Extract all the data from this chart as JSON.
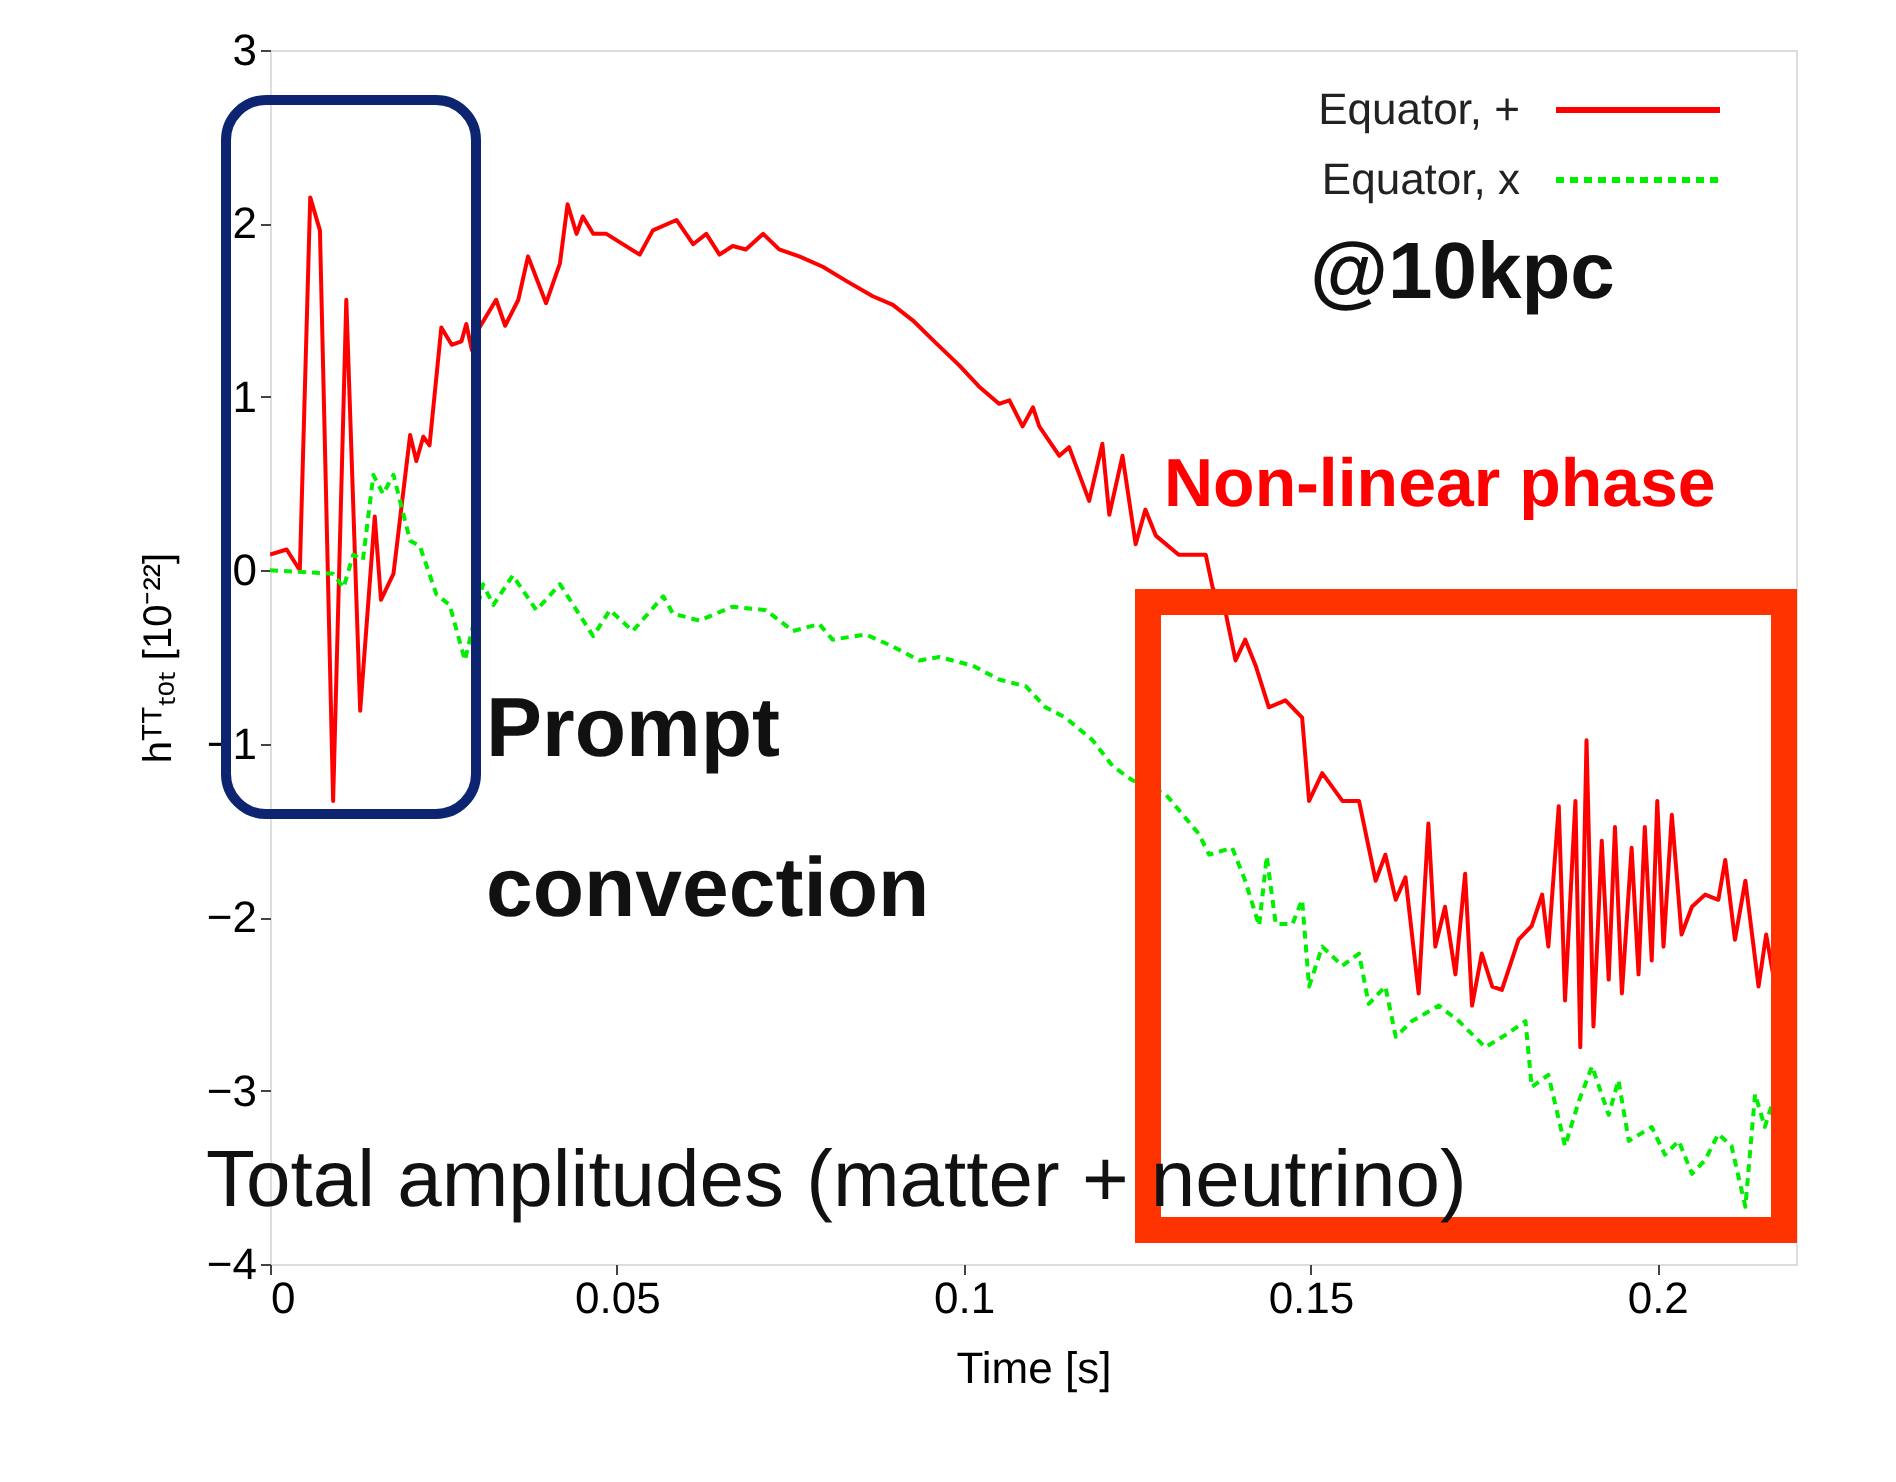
{
  "chart_data": {
    "type": "line",
    "xlabel": "Time [s]",
    "ylabel": "hᵀᵀₜₒₜ [10⁻²²]",
    "xlim": [
      0,
      0.22
    ],
    "ylim": [
      -4,
      3
    ],
    "xticks": [
      0,
      0.05,
      0.1,
      0.15,
      0.2
    ],
    "yticks": [
      -4,
      -3,
      -2,
      -1,
      0,
      1,
      2,
      3
    ],
    "grid": false,
    "legend": "top right",
    "marker": "none",
    "annotations": [
      "@10kpc",
      "Non-linear phase",
      "Prompt convection",
      "Total amplitudes (matter + neutrino)"
    ],
    "series": [
      {
        "name": "Equator, +",
        "color": "#ff0000",
        "line_style": "solid",
        "x": [
          0,
          0.0024,
          0.0043,
          0.0058,
          0.0072,
          0.0091,
          0.011,
          0.013,
          0.0151,
          0.016,
          0.0178,
          0.0202,
          0.0211,
          0.0221,
          0.023,
          0.0247,
          0.0262,
          0.0276,
          0.0283,
          0.0291,
          0.0302,
          0.0326,
          0.0339,
          0.0358,
          0.0372,
          0.0398,
          0.0418,
          0.0429,
          0.0442,
          0.0451,
          0.0466,
          0.0485,
          0.0533,
          0.0552,
          0.0586,
          0.061,
          0.0629,
          0.0648,
          0.0667,
          0.0686,
          0.0711,
          0.0734,
          0.0763,
          0.0797,
          0.083,
          0.0869,
          0.0898,
          0.0927,
          0.0955,
          0.0994,
          0.1022,
          0.1051,
          0.1066,
          0.1085,
          0.11,
          0.1109,
          0.1138,
          0.1152,
          0.1181,
          0.12,
          0.121,
          0.1229,
          0.1248,
          0.1262,
          0.1277,
          0.131,
          0.1349,
          0.1359,
          0.1378,
          0.1392,
          0.1406,
          0.1421,
          0.144,
          0.1464,
          0.1488,
          0.1498,
          0.1517,
          0.1546,
          0.157,
          0.1594,
          0.1608,
          0.1623,
          0.1637,
          0.1656,
          0.167,
          0.168,
          0.1694,
          0.1709,
          0.1723,
          0.1733,
          0.1747,
          0.1762,
          0.1776,
          0.18,
          0.1819,
          0.1834,
          0.1843,
          0.1858,
          0.1867,
          0.1882,
          0.1889,
          0.1898,
          0.1908,
          0.192,
          0.193,
          0.1939,
          0.1949,
          0.1963,
          0.1973,
          0.1982,
          0.1992,
          0.2,
          0.2009,
          0.2021,
          0.2035,
          0.205,
          0.2069,
          0.2088,
          0.2098,
          0.2112,
          0.2127,
          0.2146,
          0.2157,
          0.2167
        ],
        "values": [
          0.09,
          0.12,
          0.0,
          2.15,
          1.96,
          -1.33,
          1.56,
          -0.81,
          0.31,
          -0.17,
          -0.02,
          0.78,
          0.63,
          0.77,
          0.72,
          1.4,
          1.3,
          1.32,
          1.42,
          1.27,
          1.4,
          1.56,
          1.41,
          1.56,
          1.81,
          1.54,
          1.77,
          2.11,
          1.94,
          2.04,
          1.94,
          1.94,
          1.82,
          1.96,
          2.02,
          1.88,
          1.94,
          1.82,
          1.87,
          1.85,
          1.94,
          1.85,
          1.81,
          1.75,
          1.67,
          1.58,
          1.53,
          1.44,
          1.33,
          1.18,
          1.06,
          0.96,
          0.98,
          0.83,
          0.94,
          0.83,
          0.66,
          0.71,
          0.4,
          0.73,
          0.32,
          0.66,
          0.15,
          0.35,
          0.2,
          0.09,
          0.09,
          -0.1,
          -0.25,
          -0.52,
          -0.4,
          -0.55,
          -0.79,
          -0.75,
          -0.85,
          -1.33,
          -1.17,
          -1.33,
          -1.33,
          -1.79,
          -1.64,
          -1.9,
          -1.77,
          -2.44,
          -1.46,
          -2.17,
          -1.94,
          -2.33,
          -1.75,
          -2.51,
          -2.21,
          -2.4,
          -2.42,
          -2.13,
          -2.05,
          -1.87,
          -2.17,
          -1.36,
          -2.48,
          -1.33,
          -2.75,
          -0.98,
          -2.63,
          -1.56,
          -2.36,
          -1.48,
          -2.44,
          -1.6,
          -2.33,
          -1.48,
          -2.25,
          -1.33,
          -2.17,
          -1.41,
          -2.1,
          -1.94,
          -1.87,
          -1.9,
          -1.67,
          -2.13,
          -1.79,
          -2.4,
          -2.1,
          -2.33
        ]
      },
      {
        "name": "Equator, x",
        "color": "#00ee00",
        "line_style": "dashed",
        "x": [
          0,
          0.0091,
          0.0106,
          0.012,
          0.0134,
          0.0149,
          0.0163,
          0.0178,
          0.0202,
          0.0216,
          0.024,
          0.0259,
          0.0281,
          0.0307,
          0.0322,
          0.035,
          0.0384,
          0.0418,
          0.0466,
          0.049,
          0.0523,
          0.0567,
          0.0581,
          0.0619,
          0.0667,
          0.0715,
          0.0754,
          0.0792,
          0.0811,
          0.0859,
          0.0898,
          0.0936,
          0.0965,
          0.1013,
          0.1051,
          0.109,
          0.1118,
          0.1147,
          0.1186,
          0.1215,
          0.1243,
          0.1291,
          0.1339,
          0.1354,
          0.1387,
          0.1406,
          0.1426,
          0.1437,
          0.145,
          0.1474,
          0.1488,
          0.1498,
          0.1517,
          0.1546,
          0.157,
          0.1584,
          0.1608,
          0.1623,
          0.1646,
          0.1685,
          0.1714,
          0.1752,
          0.1781,
          0.181,
          0.1819,
          0.1843,
          0.1867,
          0.1887,
          0.1906,
          0.193,
          0.1944,
          0.1959,
          0.1992,
          0.2011,
          0.2031,
          0.205,
          0.2069,
          0.2088,
          0.2107,
          0.2127,
          0.2141,
          0.2155,
          0.2167
        ],
        "values": [
          0,
          -0.02,
          -0.1,
          0.09,
          0.06,
          0.55,
          0.44,
          0.55,
          0.17,
          0.14,
          -0.14,
          -0.2,
          -0.52,
          -0.08,
          -0.2,
          -0.03,
          -0.23,
          -0.08,
          -0.38,
          -0.23,
          -0.35,
          -0.15,
          -0.25,
          -0.29,
          -0.21,
          -0.23,
          -0.35,
          -0.31,
          -0.4,
          -0.37,
          -0.44,
          -0.52,
          -0.5,
          -0.55,
          -0.63,
          -0.67,
          -0.79,
          -0.85,
          -0.98,
          -1.13,
          -1.21,
          -1.29,
          -1.52,
          -1.64,
          -1.6,
          -1.79,
          -2.05,
          -1.65,
          -2.04,
          -2.04,
          -1.9,
          -2.4,
          -2.17,
          -2.28,
          -2.21,
          -2.5,
          -2.4,
          -2.69,
          -2.6,
          -2.51,
          -2.6,
          -2.75,
          -2.68,
          -2.6,
          -2.98,
          -2.91,
          -3.32,
          -3.06,
          -2.86,
          -3.14,
          -2.94,
          -3.29,
          -3.21,
          -3.37,
          -3.29,
          -3.48,
          -3.4,
          -3.25,
          -3.32,
          -3.67,
          -3.02,
          -3.21,
          -3.06
        ]
      }
    ]
  }
}
